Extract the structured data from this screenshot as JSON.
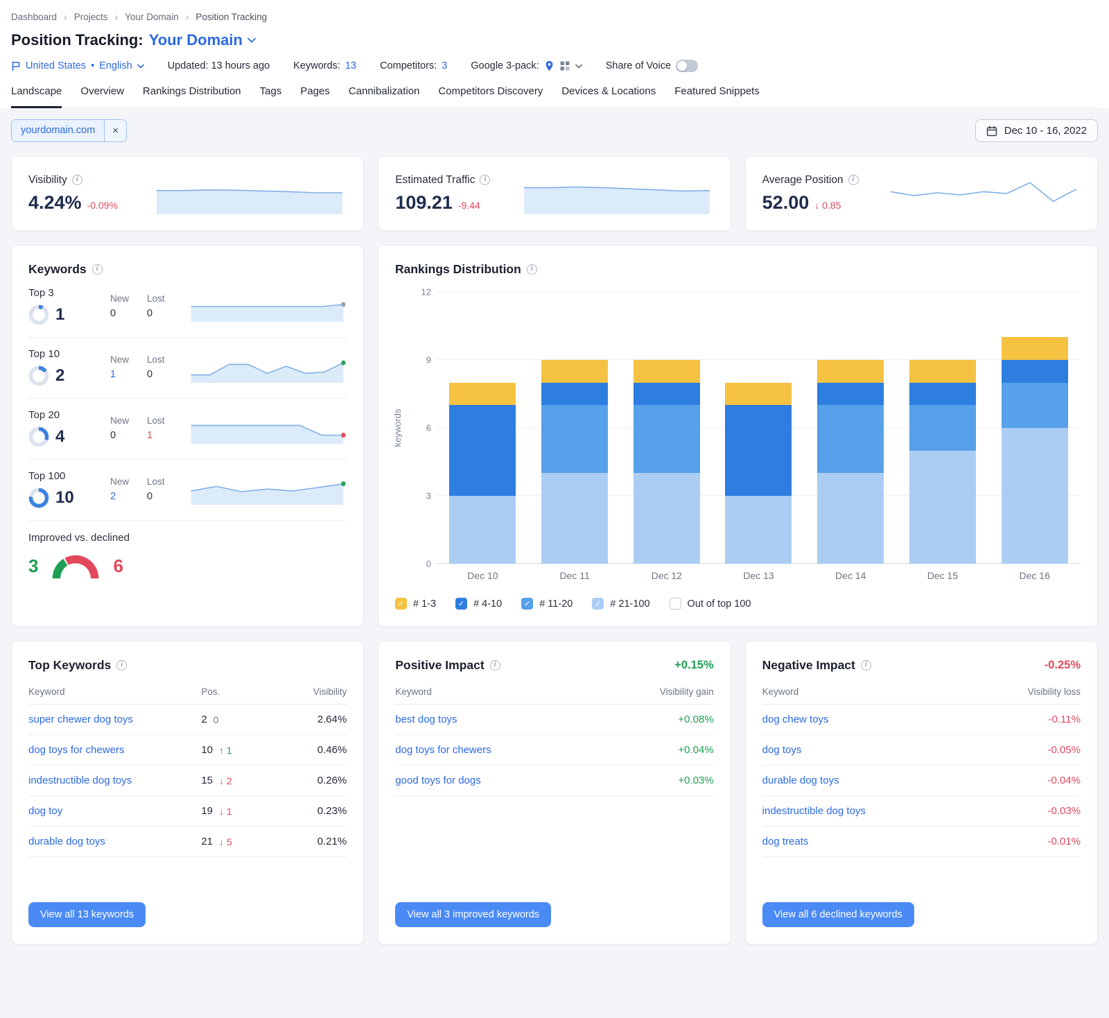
{
  "icons": {
    "close": "×",
    "info": "i",
    "check": "✓",
    "separator": "›",
    "bullet": "•"
  },
  "colors": {
    "accent_blue": "#2d6ae0",
    "red": "#e2485c",
    "green": "#1e9e54",
    "spark_line": "#7fb0e6",
    "spark_fill": "#dcebfa",
    "dot_gray": "#9aa3b2",
    "dot_green": "#27a561",
    "dot_red": "#e2485c",
    "donut_arc": "#3d82de",
    "donut_track": "#dce3ef"
  },
  "breadcrumb": [
    "Dashboard",
    "Projects",
    "Your Domain",
    "Position Tracking"
  ],
  "header": {
    "title_prefix": "Position Tracking:",
    "title_domain": "Your Domain",
    "location": "United States",
    "language": "English",
    "updated": "Updated: 13 hours ago",
    "keywords_label": "Keywords:",
    "keywords_value": "13",
    "competitors_label": "Competitors:",
    "competitors_value": "3",
    "google_pack_label": "Google 3-pack:",
    "share_of_voice": "Share of Voice"
  },
  "tabs": [
    {
      "label": "Landscape",
      "active": true
    },
    {
      "label": "Overview"
    },
    {
      "label": "Rankings Distribution"
    },
    {
      "label": "Tags"
    },
    {
      "label": "Pages"
    },
    {
      "label": "Cannibalization"
    },
    {
      "label": "Competitors Discovery"
    },
    {
      "label": "Devices & Locations"
    },
    {
      "label": "Featured Snippets"
    }
  ],
  "filters": {
    "domain_chip": "yourdomain.com",
    "date_range": "Dec 10 - 16, 2022"
  },
  "stat_cards": [
    {
      "title": "Visibility",
      "value": "4.24%",
      "delta": "-0.09%",
      "spark": [
        0.58,
        0.58,
        0.6,
        0.59,
        0.57,
        0.55,
        0.52,
        0.52
      ]
    },
    {
      "title": "Estimated Traffic",
      "value": "109.21",
      "delta": "-9.44",
      "spark": [
        0.66,
        0.66,
        0.68,
        0.66,
        0.63,
        0.6,
        0.57,
        0.58
      ]
    },
    {
      "title": "Average Position",
      "value": "52.00",
      "delta": "↓ 0.85",
      "area": false,
      "spark": [
        0.55,
        0.44,
        0.52,
        0.46,
        0.55,
        0.5,
        0.8,
        0.28,
        0.62
      ]
    }
  ],
  "keywords_card": {
    "title": "Keywords",
    "new_label": "New",
    "lost_label": "Lost",
    "rows": [
      {
        "label": "Top 3",
        "value": "1",
        "new": "0",
        "lost": "0",
        "dot": "gray",
        "spark": [
          0.5,
          0.5,
          0.5,
          0.5,
          0.5,
          0.5,
          0.5,
          0.58
        ]
      },
      {
        "label": "Top 10",
        "value": "2",
        "new": "1",
        "lost": "0",
        "dot": "green",
        "spark": [
          0.22,
          0.22,
          0.62,
          0.62,
          0.28,
          0.55,
          0.28,
          0.33,
          0.68
        ]
      },
      {
        "label": "Top 20",
        "value": "4",
        "new": "0",
        "lost": "1",
        "dot": "red",
        "spark": [
          0.62,
          0.62,
          0.62,
          0.62,
          0.62,
          0.62,
          0.25,
          0.25
        ]
      },
      {
        "label": "Top 100",
        "value": "10",
        "new": "2",
        "lost": "0",
        "dot": "green",
        "spark": [
          0.45,
          0.62,
          0.42,
          0.52,
          0.45,
          0.58,
          0.72
        ]
      }
    ],
    "improved_declined": {
      "label": "Improved vs. declined",
      "improved": "3",
      "declined": "6"
    }
  },
  "rankings_card": {
    "title": "Rankings Distribution",
    "legend": [
      {
        "label": "# 1-3",
        "color": "#f5c242",
        "checked": true
      },
      {
        "label": "# 4-10",
        "color": "#2e7de0",
        "checked": true
      },
      {
        "label": "# 11-20",
        "color": "#57a0ea",
        "checked": true
      },
      {
        "label": "# 21-100",
        "color": "#abcdf3",
        "checked": true
      },
      {
        "label": "Out of top 100",
        "color": "#ffffff",
        "checked": false
      }
    ]
  },
  "chart_data": {
    "type": "bar",
    "stacked": true,
    "title": "Rankings Distribution",
    "categories": [
      "Dec 10",
      "Dec 11",
      "Dec 12",
      "Dec 13",
      "Dec 14",
      "Dec 15",
      "Dec 16"
    ],
    "series": [
      {
        "name": "# 21-100",
        "color": "#abcdf3",
        "values": [
          3,
          4,
          4,
          3,
          4,
          5,
          6
        ]
      },
      {
        "name": "# 11-20",
        "color": "#57a0ea",
        "values": [
          0,
          3,
          3,
          0,
          3,
          2,
          2
        ]
      },
      {
        "name": "# 4-10",
        "color": "#2e7de0",
        "values": [
          4,
          1,
          1,
          4,
          1,
          1,
          1
        ]
      },
      {
        "name": "# 1-3",
        "color": "#f5c242",
        "values": [
          1,
          1,
          1,
          1,
          1,
          1,
          1
        ]
      }
    ],
    "xlabel": "",
    "ylabel": "keywords",
    "yticks": [
      0,
      3,
      6,
      9,
      12
    ],
    "ylim": [
      0,
      12
    ],
    "grid": true,
    "legend_position": "bottom"
  },
  "top_keywords": {
    "title": "Top Keywords",
    "col_keyword": "Keyword",
    "col_pos": "Pos.",
    "col_visibility": "Visibility",
    "rows": [
      {
        "keyword": "super chewer dog toys",
        "pos": "2",
        "change": "0",
        "dir": "none",
        "visibility": "2.64%"
      },
      {
        "keyword": "dog toys for chewers",
        "pos": "10",
        "change": "↑ 1",
        "dir": "up",
        "visibility": "0.46%"
      },
      {
        "keyword": "indestructible dog toys",
        "pos": "15",
        "change": "↓ 2",
        "dir": "down",
        "visibility": "0.26%"
      },
      {
        "keyword": "dog toy",
        "pos": "19",
        "change": "↓ 1",
        "dir": "down",
        "visibility": "0.23%"
      },
      {
        "keyword": "durable dog toys",
        "pos": "21",
        "change": "↓ 5",
        "dir": "down",
        "visibility": "0.21%"
      }
    ],
    "button": "View all 13 keywords"
  },
  "positive_impact": {
    "title": "Positive Impact",
    "total": "+0.15%",
    "col_keyword": "Keyword",
    "col_value": "Visibility gain",
    "rows": [
      {
        "keyword": "best dog toys",
        "value": "+0.08%"
      },
      {
        "keyword": "dog toys for chewers",
        "value": "+0.04%"
      },
      {
        "keyword": "good toys for dogs",
        "value": "+0.03%"
      }
    ],
    "button": "View all 3 improved keywords"
  },
  "negative_impact": {
    "title": "Negative Impact",
    "total": "-0.25%",
    "col_keyword": "Keyword",
    "col_value": "Visibility loss",
    "rows": [
      {
        "keyword": "dog chew toys",
        "value": "-0.11%"
      },
      {
        "keyword": "dog toys",
        "value": "-0.05%"
      },
      {
        "keyword": "durable dog toys",
        "value": "-0.04%"
      },
      {
        "keyword": "indestructible dog toys",
        "value": "-0.03%"
      },
      {
        "keyword": "dog treats",
        "value": "-0.01%"
      }
    ],
    "button": "View all 6 declined keywords"
  }
}
